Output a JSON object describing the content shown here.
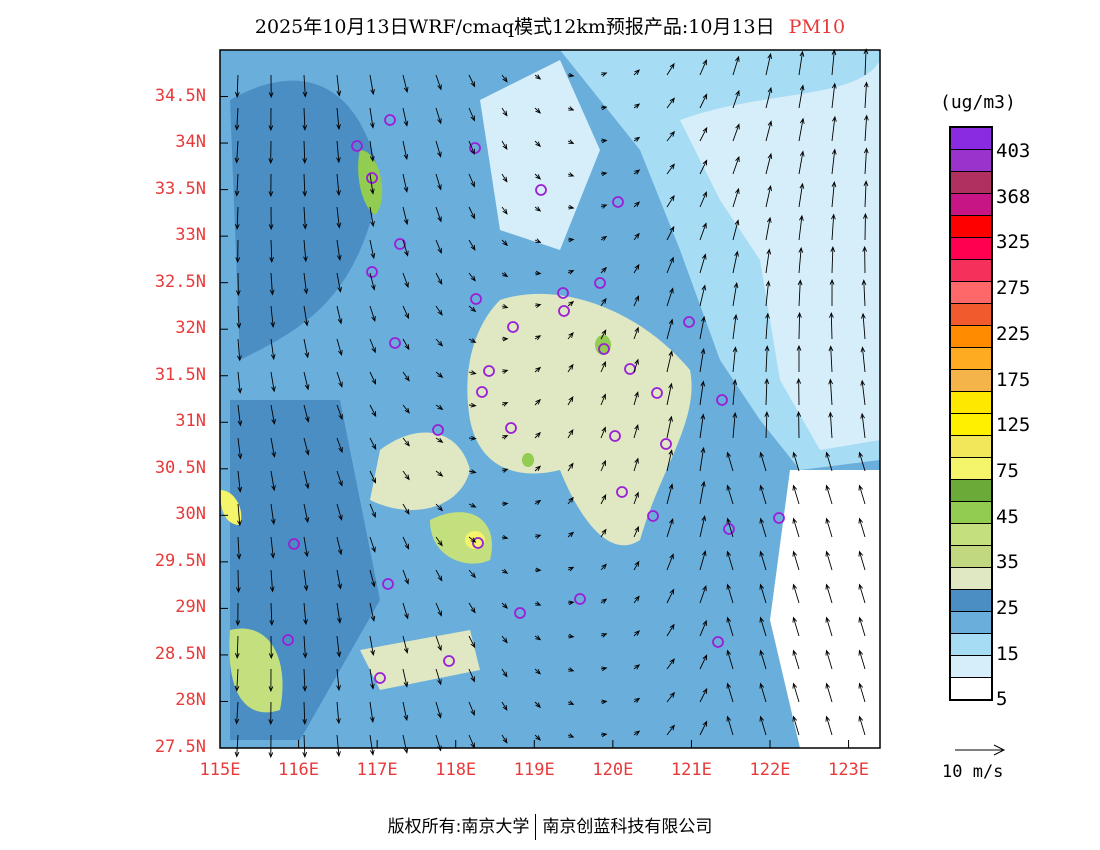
{
  "title": {
    "main": "2025年10月13日WRF/cmaq模式12km预报产品:10月13日",
    "pollutant": "PM10"
  },
  "map": {
    "lat_labels": [
      "34.5N",
      "34N",
      "33.5N",
      "33N",
      "32.5N",
      "32N",
      "31.5N",
      "31N",
      "30.5N",
      "30N",
      "29.5N",
      "29N",
      "28.5N",
      "28N",
      "27.5N"
    ],
    "lat_values": [
      34.5,
      34,
      33.5,
      33,
      32.5,
      32,
      31.5,
      31,
      30.5,
      30,
      29.5,
      29,
      28.5,
      28,
      27.5
    ],
    "lon_labels": [
      "115E",
      "116E",
      "117E",
      "118E",
      "119E",
      "120E",
      "121E",
      "122E",
      "123E"
    ],
    "lon_values": [
      115,
      116,
      117,
      118,
      119,
      120,
      121,
      122,
      123
    ],
    "lat_range": [
      27.5,
      35.0
    ],
    "lon_range": [
      115,
      123.4
    ]
  },
  "legend": {
    "unit": "(ug/m3)",
    "colors": [
      "#8a2be2",
      "#9933cc",
      "#b03060",
      "#c71585",
      "#ff0000",
      "#ff0050",
      "#f5305a",
      "#ff6868",
      "#f05a2d",
      "#ff8c00",
      "#ffab22",
      "#f5b44a",
      "#ffe800",
      "#fff000",
      "#f2e65a",
      "#f4f56a",
      "#6aaa38",
      "#92cc50",
      "#c4e07e",
      "#c2d880",
      "#dfe8c2",
      "#4a8ec4",
      "#6aaedc",
      "#a6dcf4",
      "#d6eefa",
      "#ffffff"
    ],
    "labels": [
      "403",
      "368",
      "325",
      "275",
      "225",
      "175",
      "125",
      "75",
      "45",
      "35",
      "25",
      "15",
      "5"
    ],
    "wind_ref": "10 m/s"
  },
  "footer": {
    "left": "版权所有:南京大学",
    "right": "南京创蓝科技有限公司"
  }
}
